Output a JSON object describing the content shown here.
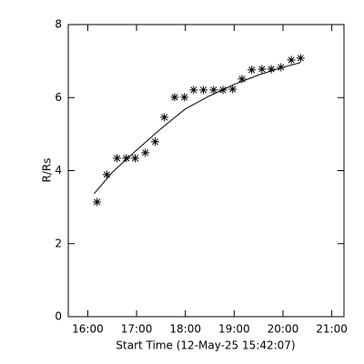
{
  "chart_data": {
    "type": "scatter",
    "xlabel": "Start Time (12-May-25 15:42:07)",
    "ylabel": "R/Rs",
    "xlim": [
      15.6,
      21.25
    ],
    "ylim": [
      0,
      8
    ],
    "xticks": [
      {
        "value": 16,
        "label": "16:00"
      },
      {
        "value": 17,
        "label": "17:00"
      },
      {
        "value": 18,
        "label": "18:00"
      },
      {
        "value": 19,
        "label": "19:00"
      },
      {
        "value": 20,
        "label": "20:00"
      },
      {
        "value": 21,
        "label": "21:00"
      }
    ],
    "yticks": [
      0,
      2,
      4,
      6,
      8
    ],
    "color": "#000000",
    "series": [
      {
        "style": "marker",
        "x": [
          16.19,
          16.39,
          16.6,
          16.79,
          16.97,
          17.18,
          17.38,
          17.57,
          17.78,
          17.98,
          18.17,
          18.37,
          18.58,
          18.77,
          18.97,
          19.16,
          19.36,
          19.57,
          19.76,
          19.96,
          20.17,
          20.36
        ],
        "values": [
          3.14,
          3.89,
          4.34,
          4.34,
          4.34,
          4.49,
          4.79,
          5.46,
          6.01,
          6.01,
          6.21,
          6.21,
          6.21,
          6.21,
          6.23,
          6.51,
          6.76,
          6.78,
          6.78,
          6.83,
          7.03,
          7.08
        ]
      },
      {
        "style": "line",
        "x": [
          16.13,
          16.5,
          17.0,
          17.5,
          18.0,
          18.5,
          19.0,
          19.5,
          20.0,
          20.36
        ],
        "values": [
          3.37,
          3.95,
          4.56,
          5.15,
          5.69,
          6.05,
          6.36,
          6.62,
          6.83,
          6.96
        ]
      }
    ]
  }
}
